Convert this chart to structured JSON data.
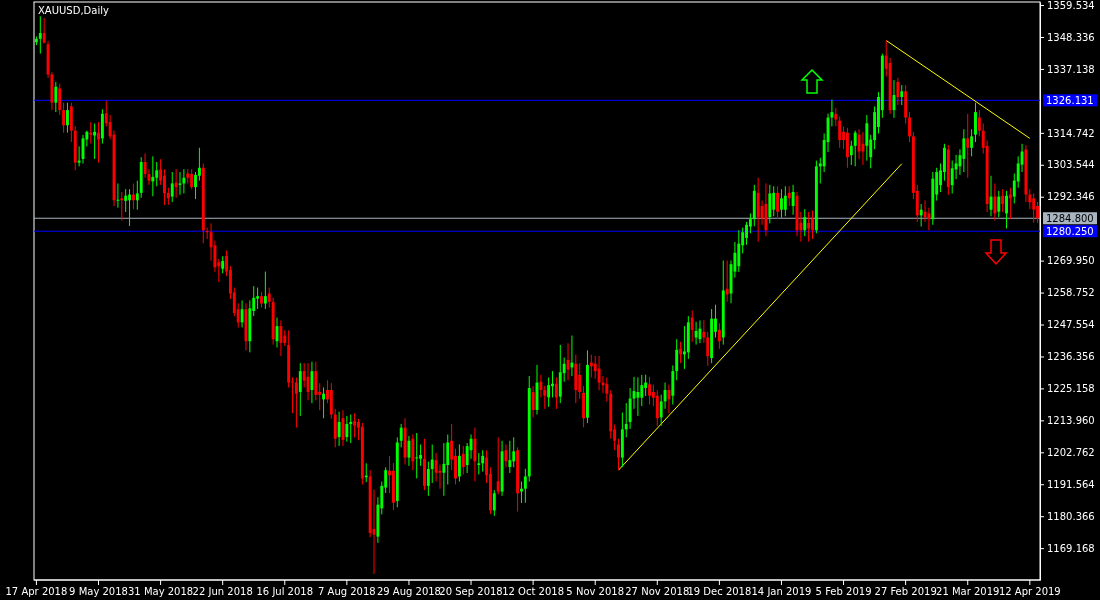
{
  "chart_data": {
    "type": "candlestick",
    "title": "XAUUSD,Daily",
    "categories": [
      "17 Apr 2018",
      null,
      null,
      null,
      null,
      null,
      null,
      null,
      null,
      null,
      null,
      null,
      null,
      null,
      null,
      null,
      "9 May 2018",
      null,
      null,
      null,
      null,
      null,
      null,
      null,
      null,
      null,
      null,
      null,
      null,
      null,
      null,
      null,
      "31 May 2018",
      null,
      null,
      null,
      null,
      null,
      null,
      null,
      null,
      null,
      null,
      null,
      null,
      null,
      null,
      null,
      "22 Jun 2018",
      null,
      null,
      null,
      null,
      null,
      null,
      null,
      null,
      null,
      null,
      null,
      null,
      null,
      null,
      null,
      "16 Jul 2018",
      null,
      null,
      null,
      null,
      null,
      null,
      null,
      null,
      null,
      null,
      null,
      null,
      null,
      null,
      null,
      "7 Aug 2018",
      null,
      null,
      null,
      null,
      null,
      null,
      null,
      null,
      null,
      null,
      null,
      null,
      null,
      null,
      null,
      "29 Aug 2018",
      null,
      null,
      null,
      null,
      null,
      null,
      null,
      null,
      null,
      null,
      null,
      null,
      null,
      null,
      null,
      "20 Sep 2018",
      null,
      null,
      null,
      null,
      null,
      null,
      null,
      null,
      null,
      null,
      null,
      null,
      null,
      null,
      null,
      "12 Oct 2018",
      null,
      null,
      null,
      null,
      null,
      null,
      null,
      null,
      null,
      null,
      null,
      null,
      null,
      null,
      null,
      "5 Nov 2018",
      null,
      null,
      null,
      null,
      null,
      null,
      null,
      null,
      null,
      null,
      null,
      null,
      null,
      null,
      null,
      "27 Nov 2018",
      null,
      null,
      null,
      null,
      null,
      null,
      null,
      null,
      null,
      null,
      null,
      null,
      null,
      null,
      null,
      "19 Dec 2018",
      null,
      null,
      null,
      null,
      null,
      null,
      null,
      null,
      null,
      null,
      null,
      null,
      null,
      null,
      null,
      "14 Jan 2019",
      null,
      null,
      null,
      null,
      null,
      null,
      null,
      null,
      null,
      null,
      null,
      null,
      null,
      null,
      null,
      "5 Feb 2019",
      null,
      null,
      null,
      null,
      null,
      null,
      null,
      null,
      null,
      null,
      null,
      null,
      null,
      null,
      null,
      "27 Feb 2019",
      null,
      null,
      null,
      null,
      null,
      null,
      null,
      null,
      null,
      null,
      null,
      null,
      null,
      null,
      null,
      "21 Mar 2019",
      null,
      null,
      null,
      null,
      null,
      null,
      null,
      null,
      null,
      null,
      null,
      null,
      null,
      null,
      null,
      "12 Apr 2019",
      null,
      null
    ],
    "ohlc": [
      [
        1346.5,
        1348.5,
        1345.5,
        1347.7
      ],
      [
        1347.7,
        1355.6,
        1342.5,
        1349.7
      ],
      [
        1349.7,
        1355.0,
        1346.0,
        1346.4
      ],
      [
        1345.8,
        1347,
        1334,
        1335.2
      ],
      [
        1335.2,
        1336,
        1322.7,
        1325.3
      ],
      [
        1325.3,
        1332.6,
        1322,
        1330.9
      ],
      [
        1330.3,
        1332,
        1321,
        1322.7
      ],
      [
        1322.7,
        1325.3,
        1314.8,
        1317.4
      ],
      [
        1317.4,
        1325.3,
        1314.8,
        1322.7
      ],
      [
        1324,
        1325.3,
        1311.5,
        1315.5
      ],
      [
        1315.5,
        1317,
        1301.6,
        1304.3
      ],
      [
        1304.3,
        1310,
        1303,
        1305
      ],
      [
        1305.6,
        1314,
        1304,
        1312.8
      ],
      [
        1312.4,
        1315.5,
        1310,
        1315.1
      ],
      [
        1314.8,
        1318.5,
        1311,
        1314.1
      ],
      [
        1313.8,
        1318,
        1305.6,
        1315.1
      ],
      [
        1314.8,
        1318.5,
        1304.3,
        1312.4
      ],
      [
        1312.8,
        1323,
        1311,
        1321.4
      ],
      [
        1321.6,
        1326,
        1317,
        1318.1
      ],
      [
        1318.5,
        1321,
        1312.5,
        1313.5
      ],
      [
        1314.1,
        1315.5,
        1289,
        1291.1
      ],
      [
        1291.1,
        1297,
        1288.5,
        1291.3
      ],
      [
        1291.8,
        1294,
        1284,
        1291.1
      ],
      [
        1290.9,
        1295,
        1287,
        1292.7
      ],
      [
        1291.1,
        1295,
        1282.1,
        1293.1
      ],
      [
        1293.1,
        1297,
        1288,
        1291.1
      ],
      [
        1291.1,
        1298,
        1287.8,
        1293.5
      ],
      [
        1293.7,
        1306.2,
        1292,
        1304.5
      ],
      [
        1304.5,
        1307.5,
        1299,
        1300.3
      ],
      [
        1300.3,
        1302,
        1296.5,
        1298.0
      ],
      [
        1297.7,
        1306.5,
        1292.5,
        1299.3
      ],
      [
        1299.0,
        1304.5,
        1296,
        1301.6
      ],
      [
        1301.9,
        1305.5,
        1296.5,
        1298.0
      ],
      [
        1299.7,
        1302,
        1289.5,
        1293.5
      ],
      [
        1293.7,
        1295.5,
        1289.5,
        1291.8
      ],
      [
        1292.4,
        1301,
        1290.5,
        1297.0
      ],
      [
        1297.3,
        1302,
        1292,
        1295.7
      ],
      [
        1296.5,
        1301,
        1293,
        1297.0
      ],
      [
        1297.0,
        1302,
        1293.5,
        1299.0
      ],
      [
        1300.5,
        1302,
        1297,
        1299.0
      ],
      [
        1300.3,
        1302,
        1295,
        1295.7
      ],
      [
        1295.7,
        1301,
        1291.5,
        1300.0
      ],
      [
        1299.7,
        1309.5,
        1298,
        1302.5
      ],
      [
        1302.5,
        1304,
        1276,
        1280.6
      ],
      [
        1280.3,
        1281.5,
        1277.5,
        1279.9
      ],
      [
        1279.9,
        1283,
        1270,
        1274.6
      ],
      [
        1275.3,
        1277,
        1266,
        1267.6
      ],
      [
        1269.4,
        1270.5,
        1262.5,
        1268.0
      ],
      [
        1267.1,
        1271.5,
        1265.5,
        1269.8
      ],
      [
        1271.6,
        1273.5,
        1264.5,
        1266.1
      ],
      [
        1266.7,
        1268,
        1256.5,
        1258.4
      ],
      [
        1258.8,
        1260.5,
        1250.5,
        1251.6
      ],
      [
        1252.9,
        1255,
        1246.5,
        1248.3
      ],
      [
        1248.3,
        1256,
        1246.5,
        1252.9
      ],
      [
        1252.9,
        1255,
        1238.5,
        1241.7
      ],
      [
        1241.7,
        1256,
        1237.8,
        1253.2
      ],
      [
        1252.3,
        1261,
        1250.5,
        1256.9
      ],
      [
        1256.6,
        1260.5,
        1253,
        1257.5
      ],
      [
        1257.5,
        1259,
        1253.5,
        1254.9
      ],
      [
        1254.9,
        1266.1,
        1253,
        1257.5
      ],
      [
        1258.4,
        1260.5,
        1253.5,
        1255.5
      ],
      [
        1255.5,
        1257,
        1240.5,
        1242.4
      ],
      [
        1241.7,
        1250,
        1239.5,
        1247.0
      ],
      [
        1247.0,
        1249,
        1236.5,
        1241.1
      ],
      [
        1243.7,
        1245.5,
        1240,
        1241.1
      ],
      [
        1240.4,
        1245.5,
        1225.5,
        1227.2
      ],
      [
        1227.6,
        1229,
        1216.5,
        1227.4
      ],
      [
        1227.2,
        1229,
        1211.4,
        1223.3
      ],
      [
        1223.9,
        1234,
        1215.5,
        1231.2
      ],
      [
        1231.2,
        1234,
        1225.5,
        1227.9
      ],
      [
        1229.2,
        1234,
        1221,
        1223.9
      ],
      [
        1224.6,
        1234.5,
        1220,
        1231.2
      ],
      [
        1231.2,
        1234.5,
        1221,
        1222.9
      ],
      [
        1223.9,
        1227,
        1217.5,
        1222.9
      ],
      [
        1221.3,
        1225.5,
        1214.7,
        1223.3
      ],
      [
        1224.6,
        1228,
        1220,
        1221.3
      ],
      [
        1224.6,
        1227,
        1214.5,
        1216.0
      ],
      [
        1216.0,
        1218,
        1204.5,
        1207.5
      ],
      [
        1208.1,
        1217,
        1205,
        1213.4
      ],
      [
        1214.7,
        1217.5,
        1205,
        1207.1
      ],
      [
        1208.1,
        1215.5,
        1206.5,
        1212.7
      ],
      [
        1212.7,
        1216,
        1206,
        1213.4
      ],
      [
        1213.7,
        1216.5,
        1208,
        1212.1
      ],
      [
        1213.4,
        1214.5,
        1207,
        1211.4
      ],
      [
        1211.7,
        1213,
        1191.5,
        1193.6
      ],
      [
        1194.0,
        1198.9,
        1192.3,
        1194.6
      ],
      [
        1194.3,
        1196.5,
        1173,
        1174.5
      ],
      [
        1175.9,
        1189.7,
        1160.1,
        1173.9
      ],
      [
        1173.2,
        1187,
        1171,
        1184.4
      ],
      [
        1183.1,
        1192.5,
        1181,
        1191.0
      ],
      [
        1190.4,
        1197.5,
        1188.5,
        1196.5
      ],
      [
        1196.3,
        1201.5,
        1188.4,
        1194.7
      ],
      [
        1196.3,
        1199,
        1182.5,
        1185.1
      ],
      [
        1185.7,
        1208,
        1183.5,
        1206.2
      ],
      [
        1206.8,
        1212.7,
        1204.5,
        1211.4
      ],
      [
        1211.4,
        1214.7,
        1198.5,
        1200.9
      ],
      [
        1200.9,
        1208.5,
        1198,
        1206.8
      ],
      [
        1207.5,
        1209,
        1196.5,
        1199.6
      ],
      [
        1200.6,
        1209.5,
        1193.6,
        1201.0
      ],
      [
        1200.5,
        1205.5,
        1198,
        1201.8
      ],
      [
        1200.5,
        1207.5,
        1189.5,
        1191.0
      ],
      [
        1191.0,
        1199.5,
        1187.5,
        1196.9
      ],
      [
        1196.9,
        1205.5,
        1192,
        1200.2
      ],
      [
        1200.0,
        1202.5,
        1192.5,
        1195.6
      ],
      [
        1196.3,
        1198.5,
        1190,
        1195.6
      ],
      [
        1195.6,
        1206,
        1187.5,
        1198.7
      ],
      [
        1198.3,
        1209,
        1191.5,
        1206.2
      ],
      [
        1206.8,
        1212.7,
        1196.5,
        1200.2
      ],
      [
        1201.5,
        1204,
        1191.5,
        1193.6
      ],
      [
        1194.3,
        1205.5,
        1192.5,
        1201.5
      ],
      [
        1202.2,
        1205,
        1195,
        1197.6
      ],
      [
        1198.3,
        1206,
        1195.5,
        1204.9
      ],
      [
        1203.5,
        1209,
        1200.5,
        1207.5
      ],
      [
        1207.5,
        1211.4,
        1192.6,
        1199.6
      ],
      [
        1198.3,
        1202.5,
        1195,
        1198.9
      ],
      [
        1198.9,
        1203.5,
        1196,
        1201.5
      ],
      [
        1200.9,
        1203.5,
        1192,
        1194.7
      ],
      [
        1195.2,
        1197.5,
        1181.1,
        1182.4
      ],
      [
        1182.4,
        1189.5,
        1180.5,
        1188.4
      ],
      [
        1192.6,
        1208,
        1188,
        1189.0
      ],
      [
        1189.0,
        1206.8,
        1187.5,
        1203.1
      ],
      [
        1203.5,
        1205.5,
        1197.5,
        1199.6
      ],
      [
        1197.6,
        1206.8,
        1195.5,
        1200.0
      ],
      [
        1199.6,
        1208,
        1197.5,
        1203.1
      ],
      [
        1203.5,
        1204.5,
        1182,
        1188.4
      ],
      [
        1189.0,
        1192.5,
        1185,
        1190.0
      ],
      [
        1190.0,
        1197,
        1185.1,
        1194.3
      ],
      [
        1194.3,
        1229.5,
        1192.5,
        1225.3
      ],
      [
        1223.9,
        1226,
        1215,
        1217.6
      ],
      [
        1217.6,
        1233.4,
        1216,
        1227.2
      ],
      [
        1227.5,
        1229.9,
        1222,
        1224.6
      ],
      [
        1224.6,
        1226,
        1218,
        1222.6
      ],
      [
        1222.0,
        1229,
        1218.7,
        1226.3
      ],
      [
        1225.9,
        1231.2,
        1222,
        1226.8
      ],
      [
        1226.8,
        1229,
        1218,
        1222.0
      ],
      [
        1222.3,
        1240.4,
        1220,
        1230.8
      ],
      [
        1230.5,
        1236,
        1227.5,
        1233.8
      ],
      [
        1235.1,
        1241,
        1228,
        1231.8
      ],
      [
        1232.5,
        1243.7,
        1229.5,
        1234.2
      ],
      [
        1233.8,
        1237,
        1220,
        1224.6
      ],
      [
        1229.9,
        1234,
        1221.5,
        1223.9
      ],
      [
        1223.6,
        1226,
        1211.5,
        1214.7
      ],
      [
        1214.9,
        1238.5,
        1213,
        1233.4
      ],
      [
        1234.2,
        1237,
        1229,
        1232.9
      ],
      [
        1233.8,
        1236.5,
        1228.5,
        1231.2
      ],
      [
        1232.1,
        1236.5,
        1224.5,
        1227.2
      ],
      [
        1227.2,
        1229.5,
        1223.5,
        1226.3
      ],
      [
        1226.8,
        1229,
        1220.5,
        1223.3
      ],
      [
        1223.3,
        1224.5,
        1207.5,
        1210.1
      ],
      [
        1210.8,
        1212.5,
        1203.5,
        1206.8
      ],
      [
        1205.5,
        1207.5,
        1196.5,
        1200.9
      ],
      [
        1200.9,
        1216.7,
        1197.6,
        1210.8
      ],
      [
        1210.8,
        1220,
        1208,
        1212.7
      ],
      [
        1213.4,
        1225.3,
        1211,
        1221.6
      ],
      [
        1221.6,
        1229.2,
        1218,
        1224.2
      ],
      [
        1221.9,
        1229,
        1215.5,
        1223.9
      ],
      [
        1221.9,
        1229.9,
        1219,
        1226.3
      ],
      [
        1225.3,
        1230,
        1222.5,
        1227.2
      ],
      [
        1226.6,
        1229.2,
        1219.5,
        1222.6
      ],
      [
        1223.9,
        1226.5,
        1219,
        1221.9
      ],
      [
        1222.6,
        1224.5,
        1212,
        1214.7
      ],
      [
        1215.0,
        1223,
        1212.1,
        1220.6
      ],
      [
        1220.6,
        1227.2,
        1218,
        1224.6
      ],
      [
        1224.6,
        1226.5,
        1216.5,
        1221.3
      ],
      [
        1222.6,
        1233.2,
        1219.5,
        1231.2
      ],
      [
        1231.2,
        1242.4,
        1228,
        1238.7
      ],
      [
        1239.1,
        1241.5,
        1234,
        1237.1
      ],
      [
        1237.1,
        1247,
        1232,
        1238.1
      ],
      [
        1237.8,
        1250.5,
        1235.5,
        1248.3
      ],
      [
        1250.0,
        1252.5,
        1241.5,
        1245.7
      ],
      [
        1243.0,
        1248.5,
        1240.5,
        1245.3
      ],
      [
        1242.4,
        1249,
        1241,
        1246.1
      ],
      [
        1245.0,
        1249.2,
        1241.1,
        1243.0
      ],
      [
        1243.0,
        1245,
        1233.1,
        1236.4
      ],
      [
        1235.8,
        1253,
        1234,
        1249.6
      ],
      [
        1245.0,
        1254.5,
        1243,
        1249.6
      ],
      [
        1245.7,
        1248,
        1239,
        1241.7
      ],
      [
        1243.0,
        1270,
        1240.5,
        1259.5
      ],
      [
        1260.1,
        1270,
        1255.5,
        1258.1
      ],
      [
        1258.4,
        1270,
        1255,
        1268.7
      ],
      [
        1266.1,
        1276.5,
        1264,
        1272.7
      ],
      [
        1268.0,
        1280.6,
        1266,
        1275.9
      ],
      [
        1275.3,
        1281.5,
        1272.5,
        1279.9
      ],
      [
        1277.9,
        1283.5,
        1275.5,
        1282.5
      ],
      [
        1281.9,
        1286.5,
        1279.5,
        1284.5
      ],
      [
        1284.5,
        1296.5,
        1282,
        1294.4
      ],
      [
        1293.7,
        1299.0,
        1276.6,
        1285.2
      ],
      [
        1289.1,
        1291,
        1282.5,
        1284.8
      ],
      [
        1289.8,
        1297.0,
        1278.5,
        1280.6
      ],
      [
        1285.2,
        1296.5,
        1283,
        1293.5
      ],
      [
        1287.8,
        1296,
        1285.5,
        1293.7
      ],
      [
        1293.7,
        1296,
        1284.5,
        1287.1
      ],
      [
        1287.8,
        1295,
        1285,
        1291.8
      ],
      [
        1287.8,
        1296,
        1285.5,
        1292.7
      ],
      [
        1293.7,
        1296,
        1289,
        1291.8
      ],
      [
        1289.1,
        1296.5,
        1286,
        1294.0
      ],
      [
        1292.7,
        1294,
        1278.5,
        1280.6
      ],
      [
        1283.2,
        1287,
        1276.6,
        1280.6
      ],
      [
        1280.6,
        1288,
        1278.5,
        1285.2
      ],
      [
        1283.2,
        1287,
        1276.6,
        1281.2
      ],
      [
        1284.5,
        1287.5,
        1277.5,
        1280.6
      ],
      [
        1280.6,
        1305,
        1279.5,
        1303.0
      ],
      [
        1303.0,
        1306,
        1297,
        1304.0
      ],
      [
        1303.0,
        1314.5,
        1301,
        1312.2
      ],
      [
        1311.5,
        1321.5,
        1308,
        1320.1
      ],
      [
        1320.1,
        1326.4,
        1317,
        1322.0
      ],
      [
        1321.4,
        1323.5,
        1317,
        1319.4
      ],
      [
        1319.0,
        1320.5,
        1309.5,
        1312.2
      ],
      [
        1315.1,
        1317,
        1309,
        1312.2
      ],
      [
        1314.8,
        1316.5,
        1302.5,
        1306.2
      ],
      [
        1306.9,
        1312,
        1303.5,
        1310.2
      ],
      [
        1310.2,
        1315.5,
        1303,
        1314.8
      ],
      [
        1314.1,
        1316,
        1305.5,
        1308.2
      ],
      [
        1310.9,
        1315,
        1303.5,
        1308.2
      ],
      [
        1310.2,
        1321,
        1305,
        1318.1
      ],
      [
        1306.2,
        1314,
        1302.3,
        1312.4
      ],
      [
        1312.2,
        1324,
        1309,
        1322.0
      ],
      [
        1316.8,
        1329,
        1314.5,
        1327.3
      ],
      [
        1322.7,
        1342.5,
        1320,
        1341.8
      ],
      [
        1341.8,
        1347.1,
        1334.5,
        1337.2
      ],
      [
        1339.2,
        1341,
        1321.4,
        1322.7
      ],
      [
        1322.7,
        1333.2,
        1320,
        1328.0
      ],
      [
        1332.6,
        1334,
        1324.5,
        1327.3
      ],
      [
        1327.3,
        1331.5,
        1324.5,
        1329.3
      ],
      [
        1329.3,
        1331.5,
        1318,
        1320.1
      ],
      [
        1320.1,
        1322,
        1311.5,
        1313.5
      ],
      [
        1313.5,
        1315,
        1291.5,
        1293.7
      ],
      [
        1294.4,
        1296.5,
        1283.5,
        1285.8
      ],
      [
        1285.8,
        1289.8,
        1281.9,
        1287.8
      ],
      [
        1287.1,
        1291.1,
        1283.5,
        1285.2
      ],
      [
        1286.5,
        1288.5,
        1280.6,
        1284.5
      ],
      [
        1284.5,
        1301,
        1282.5,
        1298.7
      ],
      [
        1293.1,
        1302.5,
        1291,
        1301.0
      ],
      [
        1296.4,
        1304,
        1294,
        1301.6
      ],
      [
        1301.0,
        1310.9,
        1298,
        1309.5
      ],
      [
        1308.9,
        1310.5,
        1293,
        1295.7
      ],
      [
        1296.4,
        1305,
        1293.5,
        1302.3
      ],
      [
        1301.9,
        1307,
        1298.5,
        1304.0
      ],
      [
        1303.0,
        1309,
        1300,
        1306.9
      ],
      [
        1305.6,
        1316,
        1301,
        1312.8
      ],
      [
        1312.8,
        1321.4,
        1299.0,
        1309.5
      ],
      [
        1309.5,
        1316,
        1306.5,
        1313.5
      ],
      [
        1314.1,
        1325.3,
        1311.5,
        1322.0
      ],
      [
        1320.1,
        1322.7,
        1313.5,
        1315.5
      ],
      [
        1315.5,
        1318,
        1307.5,
        1309.5
      ],
      [
        1310.2,
        1312,
        1287,
        1289.8
      ],
      [
        1287.8,
        1299.7,
        1285.5,
        1292.4
      ],
      [
        1292.4,
        1297.0,
        1284,
        1286.5
      ],
      [
        1287.1,
        1294.4,
        1285.2,
        1292.4
      ],
      [
        1292.7,
        1295,
        1287,
        1289.8
      ],
      [
        1286.5,
        1294.4,
        1281.2,
        1292.7
      ],
      [
        1293.1,
        1295.5,
        1284.5,
        1291.8
      ],
      [
        1292.4,
        1300.5,
        1290,
        1298.0
      ],
      [
        1297.7,
        1306.5,
        1295.5,
        1304.0
      ],
      [
        1303.6,
        1310.9,
        1301,
        1308.2
      ],
      [
        1308.9,
        1310.5,
        1290.5,
        1293.1
      ],
      [
        1293.1,
        1295,
        1288,
        1290.4
      ],
      [
        1291.8,
        1293.5,
        1283.2,
        1287.8
      ],
      [
        1289.1,
        1290.5,
        1283.2,
        1284.8
      ]
    ],
    "series": [
      {
        "type": "line",
        "color": "#ffff00",
        "values": [
          null,
          null,
          null,
          null,
          null,
          null,
          null,
          null,
          null,
          null,
          null,
          null,
          null,
          null,
          null,
          null,
          null,
          null,
          null,
          null,
          null,
          null,
          null,
          null,
          null,
          null,
          null,
          null,
          null,
          null,
          null,
          null,
          null,
          null,
          null,
          null,
          null,
          null,
          null,
          null,
          null,
          null,
          null,
          null,
          null,
          null,
          null,
          null,
          null,
          null,
          null,
          null,
          null,
          null,
          null,
          null,
          null,
          null,
          null,
          null,
          null,
          null,
          null,
          null,
          null,
          null,
          null,
          null,
          null,
          null,
          null,
          null,
          null,
          null,
          null,
          null,
          null,
          null,
          null,
          null,
          null,
          null,
          null,
          null,
          null,
          null,
          null,
          null,
          null,
          null,
          null,
          null,
          null,
          null,
          null,
          null,
          null,
          null,
          null,
          null,
          null,
          null,
          null,
          null,
          null,
          null,
          null,
          null,
          null,
          null,
          null,
          null,
          null,
          null,
          null,
          null,
          null,
          null,
          null,
          null,
          null,
          null,
          null,
          null,
          null,
          null,
          null,
          null,
          null,
          null,
          null,
          null,
          null,
          null,
          null,
          null,
          null,
          null,
          null,
          null,
          null,
          null,
          null,
          null,
          null,
          null,
          null,
          null,
          null,
          null,
          1196.5,
          null,
          null,
          null,
          null,
          null,
          null,
          null,
          null,
          null,
          null,
          null,
          null,
          null,
          null,
          null,
          null,
          null,
          null,
          null,
          null,
          null,
          null,
          null,
          null,
          null,
          null,
          null,
          null,
          null,
          null,
          null,
          null,
          null,
          null,
          null,
          null,
          null,
          null,
          null,
          null,
          null,
          null,
          null,
          null,
          null,
          null,
          null,
          null,
          null,
          null,
          null,
          null,
          null,
          null,
          null,
          null,
          null,
          null,
          null,
          null,
          null,
          null,
          null,
          null,
          null,
          null,
          null,
          null,
          null,
          null,
          null,
          null,
          1303.9,
          null,
          null,
          null,
          null,
          null,
          null,
          null,
          null,
          null,
          null,
          null,
          null,
          null,
          null,
          null,
          null,
          null,
          null,
          null,
          null,
          null,
          null,
          null,
          null,
          null,
          null,
          null,
          null,
          null,
          null,
          null,
          null,
          null,
          null,
          null
        ]
      },
      {
        "type": "line",
        "color": "#ffff00",
        "values": [
          null,
          null,
          null,
          null,
          null,
          null,
          null,
          null,
          null,
          null,
          null,
          null,
          null,
          null,
          null,
          null,
          null,
          null,
          null,
          null,
          null,
          null,
          null,
          null,
          null,
          null,
          null,
          null,
          null,
          null,
          null,
          null,
          null,
          null,
          null,
          null,
          null,
          null,
          null,
          null,
          null,
          null,
          null,
          null,
          null,
          null,
          null,
          null,
          null,
          null,
          null,
          null,
          null,
          null,
          null,
          null,
          null,
          null,
          null,
          null,
          null,
          null,
          null,
          null,
          null,
          null,
          null,
          null,
          null,
          null,
          null,
          null,
          null,
          null,
          null,
          null,
          null,
          null,
          null,
          null,
          null,
          null,
          null,
          null,
          null,
          null,
          null,
          null,
          null,
          null,
          null,
          null,
          null,
          null,
          null,
          null,
          null,
          null,
          null,
          null,
          null,
          null,
          null,
          null,
          null,
          null,
          null,
          null,
          null,
          null,
          null,
          null,
          null,
          null,
          null,
          null,
          null,
          null,
          null,
          null,
          null,
          null,
          null,
          null,
          null,
          null,
          null,
          null,
          null,
          null,
          null,
          null,
          null,
          null,
          null,
          null,
          null,
          null,
          null,
          null,
          null,
          null,
          null,
          null,
          null,
          null,
          null,
          null,
          null,
          null,
          null,
          null,
          null,
          null,
          null,
          null,
          null,
          null,
          null,
          null,
          null,
          null,
          null,
          null,
          null,
          null,
          null,
          null,
          null,
          null,
          null,
          null,
          null,
          null,
          null,
          null,
          null,
          null,
          null,
          null,
          null,
          null,
          null,
          null,
          null,
          null,
          null,
          null,
          null,
          null,
          null,
          null,
          null,
          null,
          null,
          null,
          null,
          null,
          null,
          null,
          null,
          null,
          null,
          null,
          null,
          null,
          null,
          null,
          null,
          null,
          null,
          null,
          null,
          null,
          null,
          null,
          null,
          null,
          null,
          1347.1,
          null,
          null,
          null,
          null,
          null,
          null,
          null,
          null,
          null,
          null,
          null,
          null,
          null,
          null,
          null,
          null,
          null,
          null,
          null,
          null,
          null,
          null,
          null,
          null,
          null,
          null,
          null,
          null,
          null,
          null,
          null,
          null,
          null,
          null,
          null,
          null,
          1312.8,
          null,
          null
        ]
      }
    ],
    "ylim": [
      1158.0,
      1360.6
    ],
    "yticks": [
      1359.534,
      1348.336,
      1337.138,
      1314.742,
      1303.544,
      1292.346,
      {
        "value": 1269.95,
        "label": "1269.950"
      },
      1258.752,
      1247.554,
      1236.356,
      1225.158,
      {
        "value": 1213.96,
        "label": "1213.960"
      },
      1202.762,
      1191.564,
      1180.366,
      1169.168
    ],
    "ref_lines": [
      {
        "axis": "y",
        "value": 1326.131,
        "label": "1326.131",
        "color": "#0000ff"
      },
      {
        "axis": "y",
        "value": 1284.8,
        "label": "1284.800",
        "color": "#a8b4c0"
      },
      {
        "axis": "y",
        "value": 1280.25,
        "label": "1280.250",
        "color": "#0000ff"
      }
    ]
  }
}
